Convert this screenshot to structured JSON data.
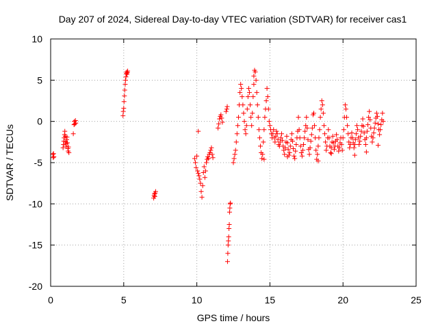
{
  "chart_data": {
    "type": "scatter",
    "title": "Day 207 of 2024, Sidereal Day-to-day VTEC variation (SDTVAR) for receiver cas1",
    "xlabel": "GPS time / hours",
    "ylabel": "SDTVAR / TECUs",
    "xlim": [
      0,
      25
    ],
    "ylim": [
      -20,
      10
    ],
    "xticks": [
      0,
      5,
      10,
      15,
      20,
      25
    ],
    "yticks": [
      -20,
      -15,
      -10,
      -5,
      0,
      5,
      10
    ],
    "xtick_labels": [
      "0",
      "5",
      "10",
      "15",
      "20",
      "25"
    ],
    "ytick_labels": [
      "-20",
      "-15",
      "-10",
      "-5",
      "0",
      "5",
      "10"
    ],
    "grid": true,
    "marker": "+",
    "series": [
      {
        "name": "SDTVAR",
        "color": "#ff0000",
        "x": [
          0.15,
          0.18,
          0.2,
          0.22,
          0.85,
          0.88,
          0.9,
          0.92,
          0.95,
          0.97,
          1.0,
          1.02,
          1.05,
          1.07,
          1.1,
          1.12,
          1.15,
          1.18,
          1.2,
          1.22,
          1.25,
          1.55,
          1.6,
          1.62,
          1.65,
          1.7,
          1.72,
          4.95,
          4.97,
          5.0,
          5.02,
          5.05,
          5.07,
          5.1,
          5.12,
          5.15,
          5.18,
          5.2,
          5.22,
          5.25,
          5.27,
          7.05,
          7.08,
          7.1,
          7.12,
          7.15,
          7.18,
          9.85,
          9.9,
          9.95,
          10.0,
          10.05,
          10.1,
          10.15,
          10.2,
          10.25,
          10.3,
          10.35,
          10.4,
          10.45,
          10.5,
          10.55,
          10.6,
          10.65,
          10.7,
          10.75,
          10.8,
          10.85,
          10.9,
          10.95,
          11.0,
          11.05,
          11.1,
          11.45,
          11.5,
          11.55,
          11.6,
          11.65,
          11.7,
          11.75,
          12.0,
          12.05,
          12.08,
          12.1,
          12.12,
          12.14,
          12.16,
          12.18,
          12.2,
          12.22,
          12.24,
          12.26,
          12.28,
          12.3,
          12.5,
          12.55,
          12.6,
          12.65,
          12.7,
          12.75,
          12.8,
          12.85,
          12.9,
          12.95,
          13.0,
          13.05,
          13.1,
          13.15,
          13.2,
          13.25,
          13.3,
          13.35,
          13.4,
          13.45,
          13.5,
          13.55,
          13.6,
          13.65,
          13.7,
          13.75,
          13.8,
          13.85,
          13.9,
          13.95,
          14.0,
          14.05,
          14.1,
          14.15,
          14.2,
          14.25,
          14.3,
          14.35,
          14.4,
          14.45,
          14.5,
          14.55,
          14.6,
          14.65,
          14.7,
          14.75,
          14.8,
          14.85,
          14.9,
          14.95,
          15.0,
          15.05,
          15.1,
          15.15,
          15.2,
          15.25,
          15.3,
          15.35,
          15.4,
          15.45,
          15.5,
          15.55,
          15.6,
          15.65,
          15.7,
          15.75,
          15.8,
          15.85,
          15.9,
          15.95,
          16.0,
          16.05,
          16.1,
          16.15,
          16.2,
          16.25,
          16.3,
          16.35,
          16.4,
          16.45,
          16.5,
          16.55,
          16.6,
          16.65,
          16.7,
          16.75,
          16.8,
          16.85,
          16.9,
          16.95,
          17.0,
          17.05,
          17.1,
          17.15,
          17.2,
          17.25,
          17.3,
          17.35,
          17.4,
          17.45,
          17.5,
          17.55,
          17.6,
          17.65,
          17.7,
          17.75,
          17.8,
          17.85,
          17.9,
          17.95,
          18.0,
          18.05,
          18.1,
          18.15,
          18.2,
          18.25,
          18.3,
          18.35,
          18.4,
          18.45,
          18.5,
          18.55,
          18.6,
          18.65,
          18.7,
          18.75,
          18.8,
          18.85,
          18.9,
          18.95,
          19.0,
          19.05,
          19.1,
          19.15,
          19.2,
          19.25,
          19.3,
          19.35,
          19.4,
          19.45,
          19.5,
          19.55,
          19.6,
          19.65,
          19.7,
          19.75,
          19.8,
          19.85,
          19.9,
          19.95,
          20.0,
          20.05,
          20.1,
          20.15,
          20.2,
          20.25,
          20.3,
          20.35,
          20.4,
          20.45,
          20.5,
          20.55,
          20.6,
          20.65,
          20.7,
          20.75,
          20.8,
          20.85,
          20.9,
          20.95,
          21.0,
          21.05,
          21.1,
          21.15,
          21.2,
          21.25,
          21.3,
          21.35,
          21.4,
          21.45,
          21.5,
          21.55,
          21.6,
          21.65,
          21.7,
          21.75,
          21.8,
          21.85,
          21.9,
          21.95,
          22.0,
          22.05,
          22.1,
          22.15,
          22.2,
          22.25,
          22.3,
          22.35,
          22.4,
          22.45,
          22.5,
          22.55,
          22.6,
          22.65,
          22.7,
          22.75,
          10.1,
          13.9,
          14.6,
          16.2,
          18.3,
          19.2,
          20.8,
          21.6,
          22.4
        ],
        "y": [
          -4.0,
          -4.4,
          -3.9,
          -4.3,
          -3.2,
          -2.8,
          -2.4,
          -2.0,
          -1.6,
          -1.2,
          -1.8,
          -2.5,
          -3.0,
          -2.7,
          -2.2,
          -1.9,
          -2.6,
          -3.3,
          -3.6,
          -3.1,
          -3.8,
          -1.5,
          -0.4,
          0.0,
          -0.3,
          0.1,
          -0.2,
          0.7,
          1.2,
          1.6,
          2.4,
          3.1,
          3.8,
          4.5,
          5.0,
          5.4,
          5.8,
          6.0,
          5.7,
          5.9,
          6.1,
          -9.3,
          -9.0,
          -8.8,
          -9.1,
          -8.7,
          -8.5,
          -4.5,
          -5.0,
          -5.6,
          -4.2,
          -6.0,
          -6.3,
          -6.6,
          -7.0,
          -7.5,
          -8.5,
          -9.2,
          -7.8,
          -6.2,
          -5.5,
          -6.8,
          -6.0,
          -5.0,
          -4.6,
          -4.3,
          -4.5,
          -4.0,
          -3.8,
          -3.5,
          -3.2,
          -4.0,
          -4.4,
          -0.8,
          -0.3,
          0.3,
          0.6,
          0.8,
          0.4,
          -0.1,
          1.2,
          1.5,
          1.8,
          -17.0,
          -16.0,
          -15.0,
          -14.5,
          -14.0,
          -13.0,
          -12.5,
          -11.0,
          -10.5,
          -10.0,
          -9.9,
          -5.0,
          -4.5,
          -4.0,
          -3.5,
          -2.5,
          -1.5,
          -0.5,
          0.5,
          2.0,
          3.5,
          4.5,
          4.0,
          3.0,
          2.0,
          1.0,
          0.0,
          -1.0,
          -1.5,
          -0.5,
          1.5,
          3.0,
          4.0,
          3.5,
          2.0,
          0.5,
          -0.5,
          1.0,
          3.0,
          5.5,
          6.2,
          6.0,
          5.0,
          3.5,
          2.0,
          0.5,
          -1.0,
          -2.0,
          -3.0,
          -3.8,
          -4.5,
          -4.0,
          -2.5,
          -1.0,
          0.5,
          1.5,
          2.5,
          4.0,
          3.0,
          1.5,
          0.0,
          -0.5,
          -1.0,
          -1.5,
          -2.0,
          -1.5,
          -1.0,
          -2.0,
          -2.5,
          -1.8,
          -1.2,
          -1.5,
          -2.2,
          -2.8,
          -3.0,
          -2.5,
          -2.0,
          -1.5,
          -2.3,
          -3.0,
          -3.5,
          -4.0,
          -3.2,
          -2.5,
          -1.8,
          -2.6,
          -3.4,
          -4.1,
          -3.8,
          -3.0,
          -2.2,
          -1.5,
          -2.4,
          -3.3,
          -4.2,
          -4.5,
          -3.6,
          -2.8,
          -2.0,
          -1.2,
          0.5,
          -1.0,
          -2.0,
          -3.0,
          -3.8,
          -4.2,
          -3.5,
          -2.8,
          -2.0,
          -1.2,
          -0.5,
          0.5,
          -0.8,
          -2.2,
          -3.4,
          -4.0,
          -3.2,
          -2.4,
          -1.6,
          -0.8,
          0.8,
          1.0,
          -0.5,
          -2.0,
          -3.5,
          -4.6,
          -4.0,
          -3.0,
          -2.0,
          -1.0,
          0.5,
          1.5,
          2.5,
          2.0,
          1.0,
          -0.5,
          -1.5,
          -2.5,
          -3.5,
          -3.0,
          -2.0,
          -1.0,
          -2.0,
          -3.0,
          -3.8,
          -3.2,
          -2.5,
          -1.8,
          -2.6,
          -3.4,
          -3.0,
          -2.4,
          -1.6,
          -2.2,
          -3.0,
          -3.6,
          -3.2,
          -2.6,
          -2.0,
          -2.8,
          -3.5,
          -2.0,
          -1.0,
          0.5,
          2.0,
          1.5,
          0.5,
          -0.5,
          -1.5,
          -2.5,
          -3.2,
          -2.8,
          -2.0,
          -1.4,
          -2.0,
          -2.6,
          -3.2,
          -2.8,
          -2.2,
          -1.5,
          -0.5,
          -1.0,
          -2.0,
          -2.8,
          -2.4,
          -1.8,
          -1.2,
          -0.5,
          0.3,
          -0.6,
          -1.4,
          -2.2,
          -2.8,
          -2.0,
          -1.2,
          -0.4,
          0.5,
          1.2,
          0.2,
          -0.8,
          -1.8,
          -2.5,
          -2.0,
          -1.4,
          -0.8,
          -0.2,
          0.4,
          1.0,
          0.6,
          -0.3,
          -1.0,
          -1.6,
          -1.0,
          -0.4,
          0.2,
          1.0,
          0.0,
          -1.2,
          4.5,
          -4.6,
          -4.3,
          -4.8,
          -3.9,
          -4.1,
          -3.7,
          -2.9
        ]
      }
    ]
  }
}
